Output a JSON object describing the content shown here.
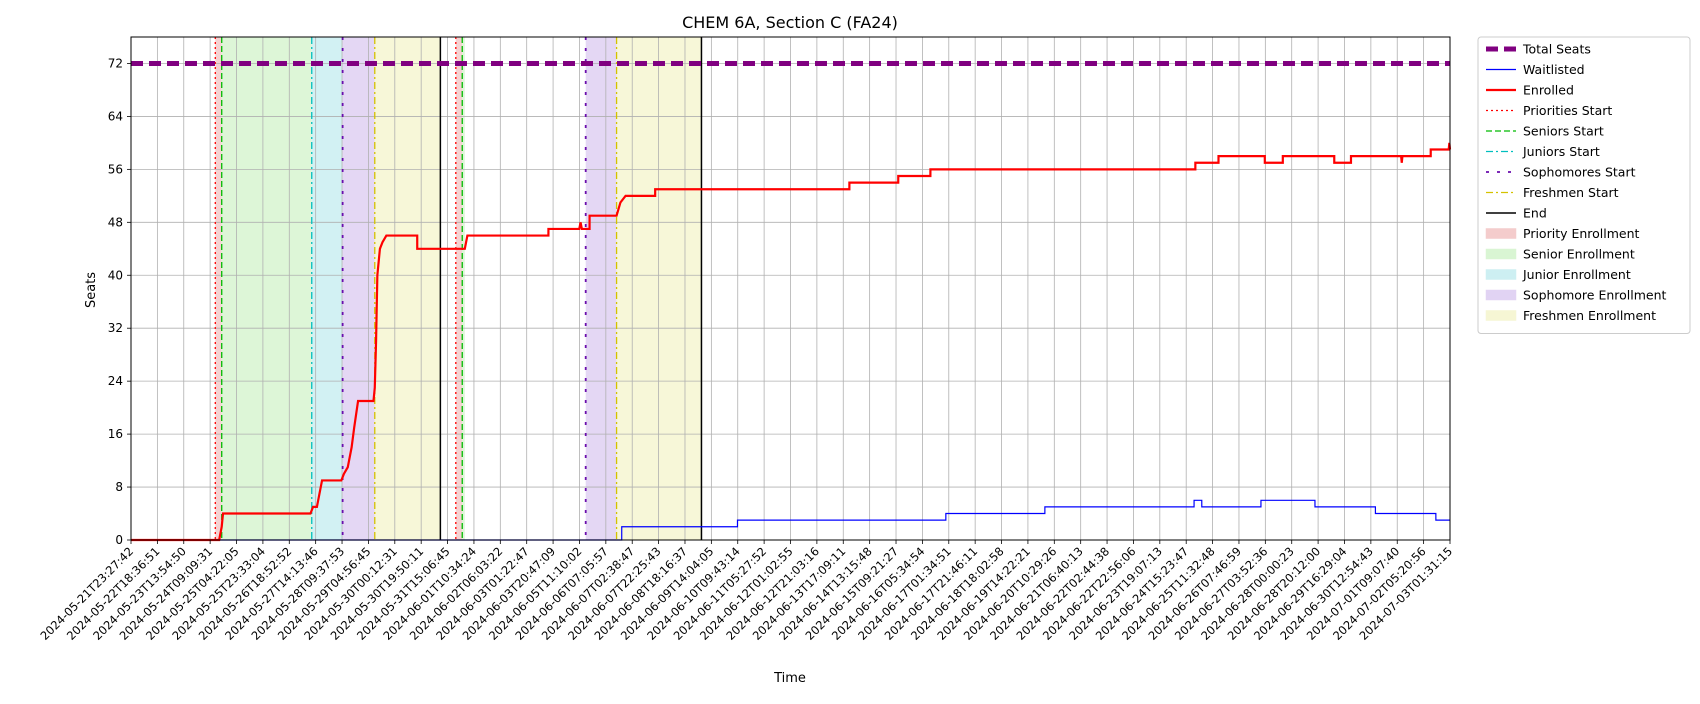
{
  "chart_data": {
    "type": "line",
    "title": "CHEM 6A, Section C (FA24)",
    "xlabel": "Time",
    "ylabel": "Seats",
    "ylim": [
      0,
      76
    ],
    "yticks": [
      0,
      8,
      16,
      24,
      32,
      40,
      48,
      56,
      64,
      72
    ],
    "grid": true,
    "legend_position": "outside-right",
    "x_start": "2024-05-21T23:27:42",
    "x_end": "2024-07-03T17:00:00",
    "xtick_labels": [
      "2024-05-21T23:27:42",
      "2024-05-22T18:36:51",
      "2024-05-23T13:54:50",
      "2024-05-24T09:09:31",
      "2024-05-25T04:22:05",
      "2024-05-25T23:33:04",
      "2024-05-26T18:52:52",
      "2024-05-27T14:13:46",
      "2024-05-28T09:37:53",
      "2024-05-29T04:56:45",
      "2024-05-30T00:12:31",
      "2024-05-30T19:50:11",
      "2024-05-31T15:06:45",
      "2024-06-01T10:34:24",
      "2024-06-02T06:03:22",
      "2024-06-03T01:22:47",
      "2024-06-03T20:47:09",
      "2024-06-05T11:10:02",
      "2024-06-06T07:05:57",
      "2024-06-07T02:38:47",
      "2024-06-07T22:25:43",
      "2024-06-08T18:16:37",
      "2024-06-09T14:04:05",
      "2024-06-10T09:43:14",
      "2024-06-11T05:27:52",
      "2024-06-12T01:02:55",
      "2024-06-12T21:03:16",
      "2024-06-13T17:09:11",
      "2024-06-14T13:15:48",
      "2024-06-15T09:21:27",
      "2024-06-16T05:34:54",
      "2024-06-17T01:34:51",
      "2024-06-17T21:46:11",
      "2024-06-18T18:02:58",
      "2024-06-19T14:22:21",
      "2024-06-20T10:29:26",
      "2024-06-21T06:40:13",
      "2024-06-22T02:44:38",
      "2024-06-22T22:56:06",
      "2024-06-23T19:07:13",
      "2024-06-24T15:23:47",
      "2024-06-25T11:32:48",
      "2024-06-26T07:46:59",
      "2024-06-27T03:52:36",
      "2024-06-28T00:00:23",
      "2024-06-28T20:12:00",
      "2024-06-29T16:29:04",
      "2024-06-30T12:54:43",
      "2024-07-01T09:07:40",
      "2024-07-02T05:20:56",
      "2024-07-03T01:31:15"
    ],
    "colors": {
      "total": "#800080",
      "waitlisted": "#0000ff",
      "enrolled": "#ff0000",
      "priorities": "#ff0000",
      "seniors": "#00bb00",
      "juniors": "#00bfbf",
      "sophomores": "#6a0dad",
      "freshmen": "#d4c200",
      "end": "#000000",
      "priority_fill": "#f4cccc",
      "senior_fill": "#d9f5d3",
      "junior_fill": "#cdeff2",
      "sophomore_fill": "#e1d3f3",
      "freshmen_fill": "#f6f6d4",
      "grid": "#b0b0b0"
    },
    "legend": [
      {
        "label": "Total Seats",
        "kind": "line",
        "color": "#800080",
        "dash": "12,6",
        "width": 5
      },
      {
        "label": "Waitlisted",
        "kind": "line",
        "color": "#0000ff",
        "dash": "",
        "width": 1.2
      },
      {
        "label": "Enrolled",
        "kind": "line",
        "color": "#ff0000",
        "dash": "",
        "width": 2.2
      },
      {
        "label": "Priorities Start",
        "kind": "line",
        "color": "#ff0000",
        "dash": "2,3",
        "width": 1.3
      },
      {
        "label": "Seniors Start",
        "kind": "line",
        "color": "#00bb00",
        "dash": "6,3",
        "width": 1.3
      },
      {
        "label": "Juniors Start",
        "kind": "line",
        "color": "#00bfbf",
        "dash": "7,3,2,3",
        "width": 1.3
      },
      {
        "label": "Sophomores Start",
        "kind": "line",
        "color": "#6a0dad",
        "dash": "3,8",
        "width": 1.8
      },
      {
        "label": "Freshmen Start",
        "kind": "line",
        "color": "#d4c200",
        "dash": "7,3,2,3",
        "width": 1.3
      },
      {
        "label": "End",
        "kind": "line",
        "color": "#000000",
        "dash": "",
        "width": 1.5
      },
      {
        "label": "Priority Enrollment",
        "kind": "patch",
        "color": "#f4cccc"
      },
      {
        "label": "Senior Enrollment",
        "kind": "patch",
        "color": "#d9f5d3"
      },
      {
        "label": "Junior Enrollment",
        "kind": "patch",
        "color": "#cdeff2"
      },
      {
        "label": "Sophomore Enrollment",
        "kind": "patch",
        "color": "#e1d3f3"
      },
      {
        "label": "Freshmen Enrollment",
        "kind": "patch",
        "color": "#f6f6d4"
      }
    ],
    "total_seats": 72,
    "phases": [
      {
        "name": "Priority Enrollment",
        "start": "2024-05-24T17:00:00",
        "end": "2024-05-24T22:00:00",
        "color_key": "priority_fill"
      },
      {
        "name": "Senior Enrollment",
        "start": "2024-05-24T22:00:00",
        "end": "2024-05-27T20:00:00",
        "color_key": "senior_fill"
      },
      {
        "name": "Junior Enrollment",
        "start": "2024-05-27T20:00:00",
        "end": "2024-05-28T20:00:00",
        "color_key": "junior_fill"
      },
      {
        "name": "Sophomore Enrollment",
        "start": "2024-05-28T20:00:00",
        "end": "2024-05-29T21:00:00",
        "color_key": "sophomore_fill"
      },
      {
        "name": "Freshmen Enrollment",
        "start": "2024-05-29T21:00:00",
        "end": "2024-06-01T00:00:00",
        "color_key": "freshmen_fill"
      },
      {
        "name": "Priority Enrollment",
        "start": "2024-06-01T12:00:00",
        "end": "2024-06-01T17:00:00",
        "color_key": "priority_fill"
      },
      {
        "name": "Senior Enrollment",
        "start": "2024-06-01T17:00:00",
        "end": "2024-06-01T19:00:00",
        "color_key": "senior_fill"
      },
      {
        "name": "Sophomore Enrollment",
        "start": "2024-06-05T17:00:00",
        "end": "2024-06-06T17:00:00",
        "color_key": "sophomore_fill"
      },
      {
        "name": "Freshmen Enrollment",
        "start": "2024-06-06T17:00:00",
        "end": "2024-06-09T11:00:00",
        "color_key": "freshmen_fill"
      }
    ],
    "vlines": [
      {
        "type": "priorities",
        "t": "2024-05-24T17:00:00"
      },
      {
        "type": "seniors",
        "t": "2024-05-24T22:00:00"
      },
      {
        "type": "juniors",
        "t": "2024-05-27T20:00:00"
      },
      {
        "type": "sophomores",
        "t": "2024-05-28T20:00:00"
      },
      {
        "type": "freshmen",
        "t": "2024-05-29T21:00:00"
      },
      {
        "type": "end",
        "t": "2024-06-01T00:00:00"
      },
      {
        "type": "priorities",
        "t": "2024-06-01T12:00:00"
      },
      {
        "type": "seniors",
        "t": "2024-06-01T17:00:00"
      },
      {
        "type": "sophomores",
        "t": "2024-06-05T17:00:00"
      },
      {
        "type": "freshmen",
        "t": "2024-06-06T17:00:00"
      },
      {
        "type": "end",
        "t": "2024-06-09T11:00:00"
      }
    ],
    "series": [
      {
        "name": "Enrolled",
        "color_key": "enrolled",
        "points": [
          [
            "2024-05-21T23:27:42",
            0
          ],
          [
            "2024-05-24T20:00:00",
            0
          ],
          [
            "2024-05-24T21:00:00",
            1
          ],
          [
            "2024-05-24T22:00:00",
            2
          ],
          [
            "2024-05-24T23:00:00",
            4
          ],
          [
            "2024-05-27T19:00:00",
            4
          ],
          [
            "2024-05-27T21:00:00",
            5
          ],
          [
            "2024-05-28T00:00:00",
            5
          ],
          [
            "2024-05-28T02:00:00",
            7
          ],
          [
            "2024-05-28T04:00:00",
            9
          ],
          [
            "2024-05-28T19:00:00",
            9
          ],
          [
            "2024-05-28T21:00:00",
            10
          ],
          [
            "2024-05-29T00:00:00",
            11
          ],
          [
            "2024-05-29T03:00:00",
            14
          ],
          [
            "2024-05-29T05:00:00",
            17
          ],
          [
            "2024-05-29T08:00:00",
            21
          ],
          [
            "2024-05-29T20:00:00",
            21
          ],
          [
            "2024-05-29T21:00:00",
            23
          ],
          [
            "2024-05-29T22:00:00",
            30
          ],
          [
            "2024-05-29T23:00:00",
            40
          ],
          [
            "2024-05-30T00:00:00",
            42
          ],
          [
            "2024-05-30T01:00:00",
            44
          ],
          [
            "2024-05-30T03:00:00",
            45
          ],
          [
            "2024-05-30T06:00:00",
            46
          ],
          [
            "2024-05-31T06:00:00",
            46
          ],
          [
            "2024-05-31T06:01:00",
            44
          ],
          [
            "2024-06-01T19:00:00",
            44
          ],
          [
            "2024-06-01T20:00:00",
            45
          ],
          [
            "2024-06-01T21:00:00",
            46
          ],
          [
            "2024-06-04T12:00:00",
            46
          ],
          [
            "2024-06-04T12:01:00",
            47
          ],
          [
            "2024-06-05T12:00:00",
            47
          ],
          [
            "2024-06-05T13:00:00",
            48
          ],
          [
            "2024-06-05T14:00:00",
            47
          ],
          [
            "2024-06-05T20:00:00",
            47
          ],
          [
            "2024-06-05T20:01:00",
            49
          ],
          [
            "2024-06-06T17:00:00",
            49
          ],
          [
            "2024-06-06T20:00:00",
            51
          ],
          [
            "2024-06-07T00:00:00",
            52
          ],
          [
            "2024-06-07T23:00:00",
            52
          ],
          [
            "2024-06-07T23:01:00",
            53
          ],
          [
            "2024-06-14T06:00:00",
            53
          ],
          [
            "2024-06-14T06:01:00",
            54
          ],
          [
            "2024-06-15T20:00:00",
            54
          ],
          [
            "2024-06-15T20:01:00",
            55
          ],
          [
            "2024-06-16T21:00:00",
            55
          ],
          [
            "2024-06-16T21:01:00",
            56
          ],
          [
            "2024-06-25T11:00:00",
            56
          ],
          [
            "2024-06-25T11:01:00",
            57
          ],
          [
            "2024-06-26T05:00:00",
            57
          ],
          [
            "2024-06-26T05:01:00",
            58
          ],
          [
            "2024-06-27T17:00:00",
            58
          ],
          [
            "2024-06-27T17:01:00",
            57
          ],
          [
            "2024-06-28T07:00:00",
            57
          ],
          [
            "2024-06-28T07:01:00",
            58
          ],
          [
            "2024-06-29T23:00:00",
            58
          ],
          [
            "2024-06-29T23:01:00",
            57
          ],
          [
            "2024-06-30T12:00:00",
            57
          ],
          [
            "2024-06-30T12:01:00",
            58
          ],
          [
            "2024-07-02T03:00:00",
            58
          ],
          [
            "2024-07-02T03:30:00",
            57
          ],
          [
            "2024-07-02T04:00:00",
            58
          ],
          [
            "2024-07-03T02:00:00",
            58
          ],
          [
            "2024-07-03T02:01:00",
            59
          ],
          [
            "2024-07-03T16:00:00",
            59
          ],
          [
            "2024-07-03T16:30:00",
            60
          ],
          [
            "2024-07-03T17:00:00",
            59
          ]
        ]
      },
      {
        "name": "Waitlisted",
        "color_key": "waitlisted",
        "points": [
          [
            "2024-05-21T23:27:42",
            0
          ],
          [
            "2024-06-06T21:00:00",
            0
          ],
          [
            "2024-06-06T21:01:00",
            2
          ],
          [
            "2024-06-10T15:00:00",
            2
          ],
          [
            "2024-06-10T15:01:00",
            3
          ],
          [
            "2024-06-17T09:00:00",
            3
          ],
          [
            "2024-06-17T09:01:00",
            4
          ],
          [
            "2024-06-20T14:00:00",
            4
          ],
          [
            "2024-06-20T14:01:00",
            5
          ],
          [
            "2024-06-25T10:00:00",
            5
          ],
          [
            "2024-06-25T10:01:00",
            6
          ],
          [
            "2024-06-25T16:00:00",
            6
          ],
          [
            "2024-06-25T16:01:00",
            5
          ],
          [
            "2024-06-27T14:00:00",
            5
          ],
          [
            "2024-06-27T14:01:00",
            6
          ],
          [
            "2024-06-29T08:00:00",
            6
          ],
          [
            "2024-06-29T08:01:00",
            5
          ],
          [
            "2024-07-01T07:00:00",
            5
          ],
          [
            "2024-07-01T07:01:00",
            4
          ],
          [
            "2024-07-03T06:00:00",
            4
          ],
          [
            "2024-07-03T06:01:00",
            3
          ],
          [
            "2024-07-03T17:00:00",
            3
          ]
        ]
      }
    ]
  }
}
